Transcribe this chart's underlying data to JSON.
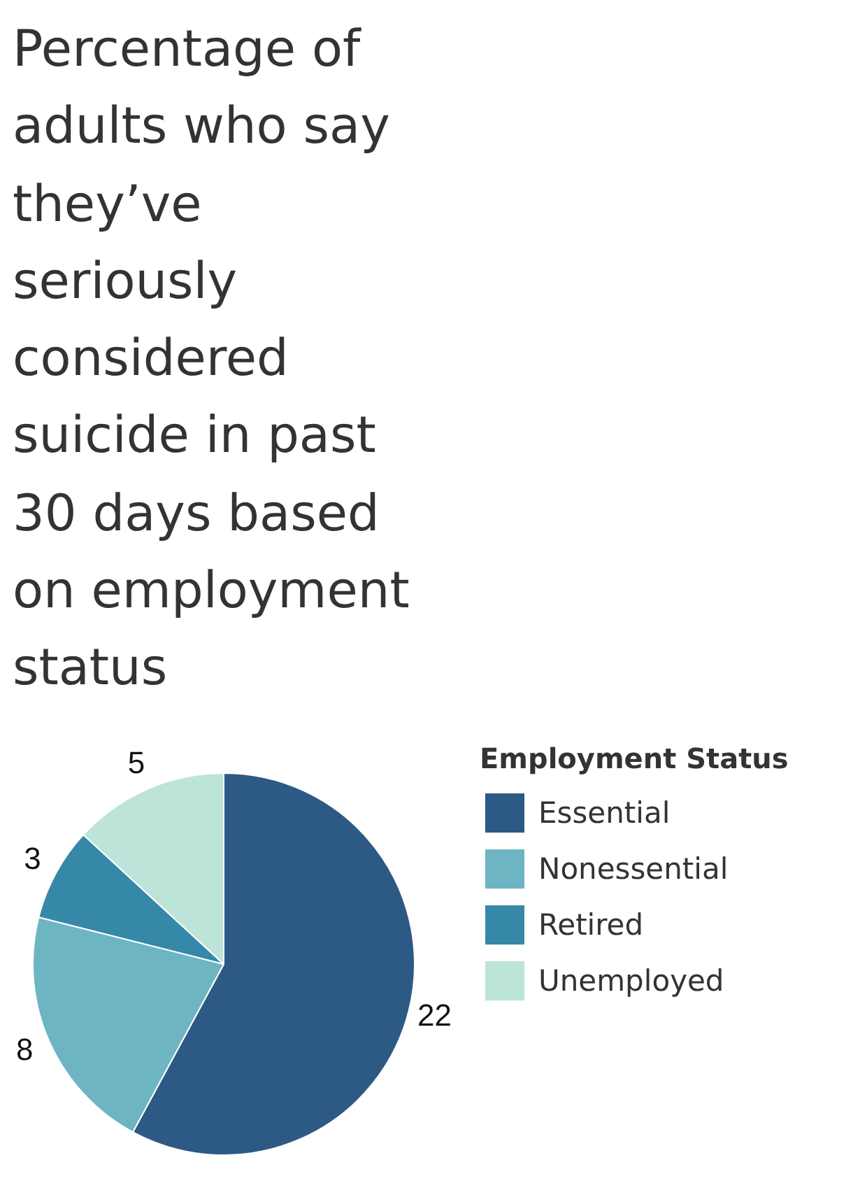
{
  "chart_data": {
    "type": "pie",
    "title": "Percentage of adults who say they’ve seriously considered suicide in past 30 days based on employment status",
    "legend_title": "Employment Status",
    "categories": [
      "Essential",
      "Nonessential",
      "Retired",
      "Unemployed"
    ],
    "values": [
      22,
      8,
      3,
      5
    ],
    "colors": [
      "#2d5985",
      "#6db5c3",
      "#3688a8",
      "#bde4d9"
    ],
    "data_labels": true,
    "legend": "right"
  }
}
